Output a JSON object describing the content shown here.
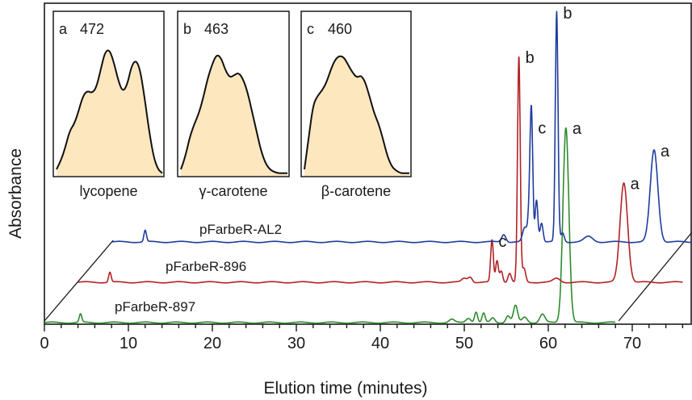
{
  "chart_data": {
    "type": "line",
    "xlabel": "Elution time (minutes)",
    "ylabel": "Absorbance",
    "xlim": [
      0,
      76
    ],
    "x_ticks": [
      "0",
      "10",
      "20",
      "30",
      "40",
      "50",
      "60",
      "70"
    ],
    "x_tick_values": [
      0,
      10,
      20,
      30,
      40,
      50,
      60,
      70
    ],
    "grid": false,
    "perspective_offset_minutes_per_level": 4,
    "series": [
      {
        "name": "pFarbeR-897",
        "color": "#2e8b2e",
        "level": 0,
        "baseline_end_x": 68,
        "peaks": [
          {
            "x": 4.3,
            "height": 0.11,
            "width": 0.15
          },
          {
            "x": 48.5,
            "height": 0.04,
            "width": 0.3
          },
          {
            "x": 50.5,
            "height": 0.06,
            "width": 0.3
          },
          {
            "x": 51.4,
            "height": 0.14,
            "width": 0.18
          },
          {
            "x": 52.3,
            "height": 0.12,
            "width": 0.18
          },
          {
            "x": 53.4,
            "height": 0.06,
            "width": 0.25
          },
          {
            "x": 55.2,
            "height": 0.09,
            "width": 0.25
          },
          {
            "x": 56.1,
            "height": 0.22,
            "width": 0.25
          },
          {
            "x": 57.2,
            "height": 0.07,
            "width": 0.3
          },
          {
            "x": 59.3,
            "height": 0.11,
            "width": 0.3
          },
          {
            "x": 62.1,
            "height": 2.55,
            "width": 0.35
          }
        ],
        "peak_labels": [
          {
            "x": 62.1,
            "text": "a"
          }
        ]
      },
      {
        "name": "pFarbeR-896",
        "color": "#b22226",
        "level": 1,
        "baseline_end_x": 72,
        "peaks": [
          {
            "x": 3.8,
            "height": 0.13,
            "width": 0.15
          },
          {
            "x": 46.0,
            "height": 0.05,
            "width": 0.3
          },
          {
            "x": 46.7,
            "height": 0.07,
            "width": 0.25
          },
          {
            "x": 49.3,
            "height": 0.55,
            "width": 0.16
          },
          {
            "x": 49.9,
            "height": 0.28,
            "width": 0.16
          },
          {
            "x": 50.4,
            "height": 0.15,
            "width": 0.18
          },
          {
            "x": 51.4,
            "height": 0.12,
            "width": 0.2
          },
          {
            "x": 52.5,
            "height": 2.95,
            "width": 0.16
          },
          {
            "x": 53.1,
            "height": 0.18,
            "width": 0.2
          },
          {
            "x": 57.0,
            "height": 0.05,
            "width": 0.4
          },
          {
            "x": 65.0,
            "height": 1.3,
            "width": 0.45
          }
        ],
        "peak_labels": [
          {
            "x": 49.3,
            "text": "c"
          },
          {
            "x": 52.5,
            "text": "b"
          },
          {
            "x": 65.0,
            "text": "a"
          }
        ]
      },
      {
        "name": "pFarbeR-AL2",
        "color": "#1f3c9e",
        "level": 2,
        "baseline_end_x": 76,
        "peaks": [
          {
            "x": 4.0,
            "height": 0.15,
            "width": 0.15
          },
          {
            "x": 46.7,
            "height": 0.1,
            "width": 0.25
          },
          {
            "x": 49.2,
            "height": 0.18,
            "width": 0.25
          },
          {
            "x": 49.8,
            "height": 0.45,
            "width": 0.2
          },
          {
            "x": 50.0,
            "height": 1.5,
            "width": 0.16
          },
          {
            "x": 50.6,
            "height": 0.55,
            "width": 0.16
          },
          {
            "x": 51.2,
            "height": 0.25,
            "width": 0.18
          },
          {
            "x": 53.0,
            "height": 3.0,
            "width": 0.16
          },
          {
            "x": 53.7,
            "height": 0.12,
            "width": 0.2
          },
          {
            "x": 56.8,
            "height": 0.07,
            "width": 0.5
          },
          {
            "x": 64.6,
            "height": 1.2,
            "width": 0.45
          }
        ],
        "peak_labels": [
          {
            "x": 50.0,
            "text": "c"
          },
          {
            "x": 53.0,
            "text": "b"
          },
          {
            "x": 64.6,
            "text": "a"
          }
        ]
      }
    ],
    "insets": [
      {
        "letter": "a",
        "lambda_max": "472",
        "name": "lycopene",
        "spectrum": [
          0.05,
          0.12,
          0.22,
          0.35,
          0.4,
          0.5,
          0.62,
          0.66,
          0.64,
          0.68,
          0.82,
          0.96,
          0.98,
          0.88,
          0.74,
          0.65,
          0.7,
          0.85,
          0.9,
          0.82,
          0.6,
          0.35,
          0.15,
          0.05,
          0.02
        ]
      },
      {
        "letter": "b",
        "lambda_max": "463",
        "name": "γ-carotene",
        "spectrum": [
          0.05,
          0.15,
          0.3,
          0.4,
          0.48,
          0.6,
          0.75,
          0.86,
          0.94,
          0.92,
          0.82,
          0.76,
          0.78,
          0.8,
          0.75,
          0.65,
          0.5,
          0.35,
          0.2,
          0.1,
          0.05,
          0.03,
          0.02,
          0.02,
          0.02
        ]
      },
      {
        "letter": "c",
        "lambda_max": "460",
        "name": "β-carotene",
        "spectrum": [
          0.05,
          0.3,
          0.55,
          0.62,
          0.66,
          0.72,
          0.82,
          0.9,
          0.93,
          0.92,
          0.86,
          0.8,
          0.76,
          0.78,
          0.72,
          0.6,
          0.48,
          0.4,
          0.28,
          0.15,
          0.07,
          0.04,
          0.02,
          0.02,
          0.02
        ]
      }
    ]
  },
  "colors": {
    "inset_fill": "#fde7be",
    "axis": "#1a1a1a"
  }
}
